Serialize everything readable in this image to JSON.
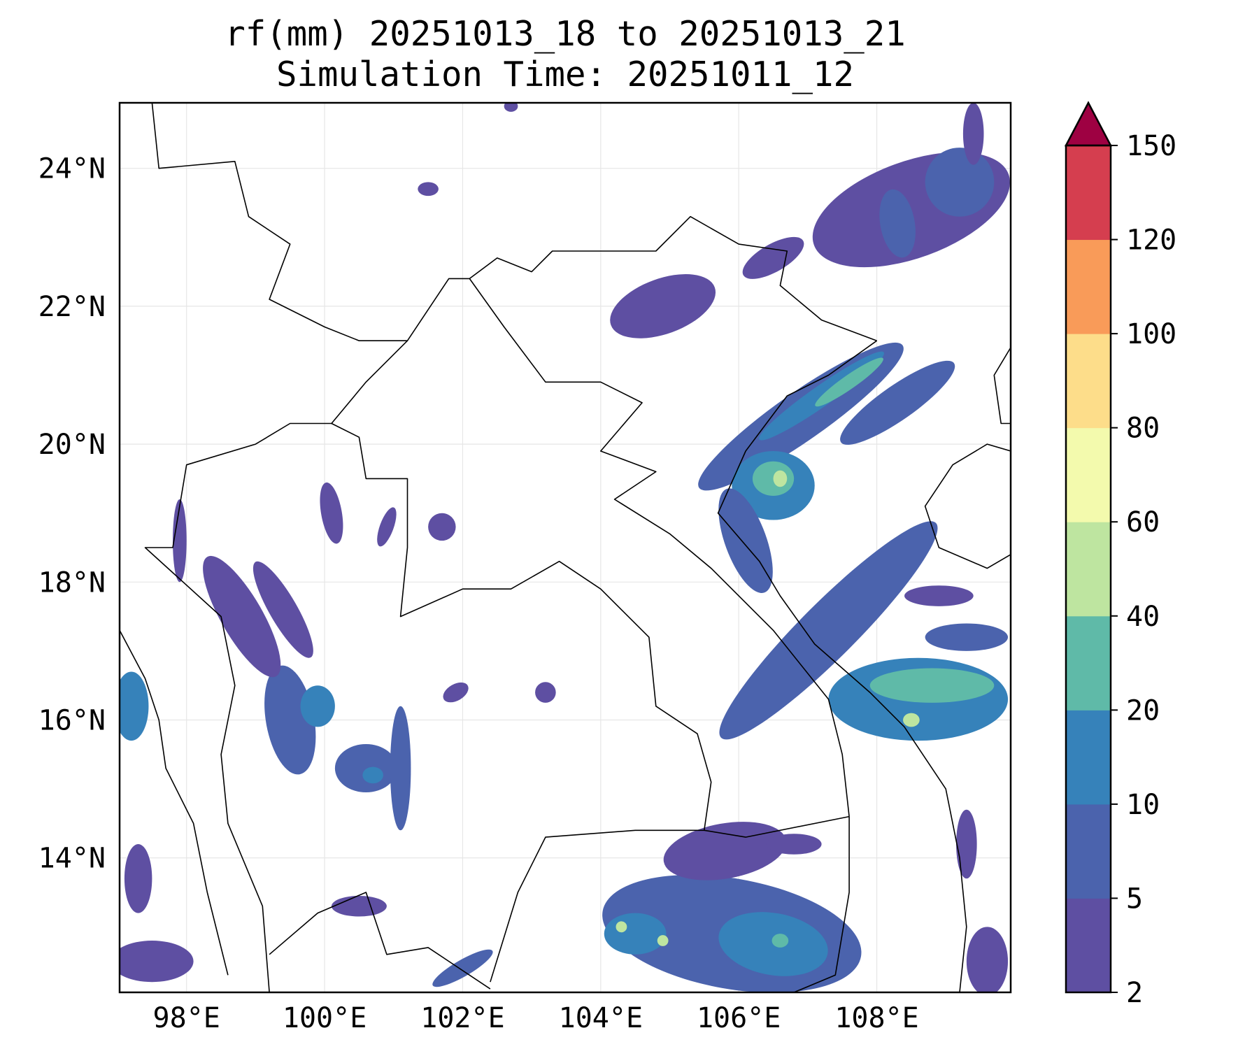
{
  "title": {
    "line1": "rf(mm) 20251013_18 to 20251013_21",
    "line2": "Simulation Time: 20251011_12"
  },
  "map": {
    "lon_range": [
      97.03,
      109.94
    ],
    "lat_range": [
      12.05,
      24.95
    ],
    "grid": true,
    "x_ticks": [
      {
        "value": 98,
        "label": "98°E"
      },
      {
        "value": 100,
        "label": "100°E"
      },
      {
        "value": 102,
        "label": "102°E"
      },
      {
        "value": 104,
        "label": "104°E"
      },
      {
        "value": 106,
        "label": "106°E"
      },
      {
        "value": 108,
        "label": "108°E"
      }
    ],
    "y_ticks": [
      {
        "value": 24,
        "label": "24°N"
      },
      {
        "value": 22,
        "label": "22°N"
      },
      {
        "value": 20,
        "label": "20°N"
      },
      {
        "value": 18,
        "label": "18°N"
      },
      {
        "value": 16,
        "label": "16°N"
      },
      {
        "value": 14,
        "label": "14°N"
      }
    ],
    "borders": [
      [
        [
          97.5,
          24.95
        ],
        [
          97.6,
          24.0
        ],
        [
          98.7,
          24.1
        ],
        [
          98.9,
          23.3
        ],
        [
          99.5,
          22.9
        ],
        [
          99.2,
          22.1
        ],
        [
          100.0,
          21.7
        ],
        [
          100.5,
          21.5
        ],
        [
          101.2,
          21.5
        ],
        [
          101.8,
          22.4
        ],
        [
          102.1,
          22.4
        ],
        [
          102.5,
          22.7
        ],
        [
          103.0,
          22.5
        ],
        [
          103.3,
          22.8
        ],
        [
          104.0,
          22.8
        ],
        [
          104.8,
          22.8
        ],
        [
          105.3,
          23.3
        ],
        [
          106.0,
          22.9
        ],
        [
          106.7,
          22.8
        ],
        [
          106.6,
          22.3
        ],
        [
          107.2,
          21.8
        ],
        [
          108.0,
          21.5
        ]
      ],
      [
        [
          108.0,
          21.5
        ],
        [
          107.3,
          21.0
        ],
        [
          106.7,
          20.7
        ],
        [
          106.1,
          19.9
        ],
        [
          105.7,
          19.0
        ],
        [
          106.3,
          18.3
        ],
        [
          106.6,
          17.8
        ],
        [
          107.1,
          17.1
        ],
        [
          107.9,
          16.4
        ],
        [
          108.4,
          15.9
        ],
        [
          109.0,
          15.0
        ],
        [
          109.2,
          14.0
        ],
        [
          109.3,
          13.0
        ],
        [
          109.2,
          12.05
        ]
      ],
      [
        [
          102.1,
          22.4
        ],
        [
          102.6,
          21.7
        ],
        [
          103.2,
          20.9
        ],
        [
          104.0,
          20.9
        ],
        [
          104.6,
          20.6
        ],
        [
          104.0,
          19.9
        ],
        [
          104.8,
          19.6
        ],
        [
          104.2,
          19.2
        ],
        [
          105.0,
          18.7
        ],
        [
          105.6,
          18.2
        ],
        [
          106.5,
          17.3
        ],
        [
          107.3,
          16.3
        ],
        [
          107.5,
          15.5
        ],
        [
          107.6,
          14.6
        ]
      ],
      [
        [
          107.6,
          14.6
        ],
        [
          107.6,
          13.5
        ],
        [
          107.4,
          12.3
        ],
        [
          106.8,
          12.05
        ]
      ],
      [
        [
          101.2,
          21.5
        ],
        [
          100.6,
          20.9
        ],
        [
          100.1,
          20.3
        ],
        [
          100.5,
          20.1
        ],
        [
          100.6,
          19.5
        ],
        [
          101.2,
          19.5
        ],
        [
          101.2,
          18.5
        ],
        [
          101.1,
          17.5
        ],
        [
          102.0,
          17.9
        ],
        [
          102.7,
          17.9
        ],
        [
          103.4,
          18.3
        ],
        [
          104.0,
          17.9
        ],
        [
          104.7,
          17.2
        ],
        [
          104.8,
          16.2
        ],
        [
          105.4,
          15.8
        ],
        [
          105.6,
          15.1
        ],
        [
          105.5,
          14.4
        ]
      ],
      [
        [
          100.1,
          20.3
        ],
        [
          99.5,
          20.3
        ],
        [
          99.0,
          20.0
        ],
        [
          98.0,
          19.7
        ],
        [
          97.8,
          18.5
        ],
        [
          97.4,
          18.5
        ],
        [
          98.5,
          17.5
        ],
        [
          98.7,
          16.5
        ],
        [
          98.5,
          15.5
        ],
        [
          98.6,
          14.5
        ],
        [
          99.1,
          13.3
        ],
        [
          99.2,
          12.05
        ]
      ],
      [
        [
          102.4,
          12.2
        ],
        [
          102.8,
          13.5
        ],
        [
          103.2,
          14.3
        ],
        [
          104.5,
          14.4
        ],
        [
          105.5,
          14.4
        ],
        [
          106.1,
          14.3
        ],
        [
          107.6,
          14.6
        ]
      ],
      [
        [
          99.2,
          12.6
        ],
        [
          99.9,
          13.2
        ],
        [
          100.6,
          13.5
        ],
        [
          100.9,
          12.6
        ],
        [
          101.5,
          12.7
        ],
        [
          102.4,
          12.1
        ]
      ],
      [
        [
          97.03,
          17.3
        ],
        [
          97.4,
          16.6
        ],
        [
          97.6,
          16.0
        ],
        [
          97.7,
          15.3
        ],
        [
          98.1,
          14.5
        ],
        [
          98.3,
          13.5
        ],
        [
          98.6,
          12.3
        ]
      ],
      [
        [
          109.94,
          19.9
        ],
        [
          109.6,
          20.0
        ],
        [
          109.1,
          19.7
        ],
        [
          108.7,
          19.1
        ],
        [
          108.9,
          18.5
        ],
        [
          109.6,
          18.2
        ],
        [
          109.94,
          18.4
        ]
      ],
      [
        [
          109.94,
          21.4
        ],
        [
          109.7,
          21.0
        ],
        [
          109.8,
          20.3
        ],
        [
          109.94,
          20.3
        ]
      ]
    ]
  },
  "rain_cells": [
    {
      "lon": 108.5,
      "lat": 23.4,
      "rlon": 1.5,
      "rlat": 0.7,
      "rot": -20,
      "level": 0
    },
    {
      "lon": 108.3,
      "lat": 23.2,
      "rlon": 0.25,
      "rlat": 0.5,
      "rot": -10,
      "level": 1
    },
    {
      "lon": 109.2,
      "lat": 23.8,
      "rlon": 0.5,
      "rlat": 0.5,
      "rot": 0,
      "level": 1
    },
    {
      "lon": 104.9,
      "lat": 22.0,
      "rlon": 0.8,
      "rlat": 0.4,
      "rot": -20,
      "level": 0
    },
    {
      "lon": 106.5,
      "lat": 22.7,
      "rlon": 0.5,
      "rlat": 0.2,
      "rot": -30,
      "level": 0
    },
    {
      "lon": 106.9,
      "lat": 20.4,
      "rlon": 1.8,
      "rlat": 0.35,
      "rot": -35,
      "level": 1
    },
    {
      "lon": 107.2,
      "lat": 20.7,
      "rlon": 1.1,
      "rlat": 0.15,
      "rot": -35,
      "level": 2
    },
    {
      "lon": 107.6,
      "lat": 20.9,
      "rlon": 0.6,
      "rlat": 0.1,
      "rot": -35,
      "level": 3
    },
    {
      "lon": 108.3,
      "lat": 20.6,
      "rlon": 1.0,
      "rlat": 0.25,
      "rot": -35,
      "level": 1
    },
    {
      "lon": 106.5,
      "lat": 19.4,
      "rlon": 0.6,
      "rlat": 0.5,
      "rot": 0,
      "level": 2
    },
    {
      "lon": 106.5,
      "lat": 19.5,
      "rlon": 0.3,
      "rlat": 0.25,
      "rot": 0,
      "level": 3
    },
    {
      "lon": 106.6,
      "lat": 19.5,
      "rlon": 0.1,
      "rlat": 0.12,
      "rot": 0,
      "level": 4
    },
    {
      "lon": 106.1,
      "lat": 18.6,
      "rlon": 0.3,
      "rlat": 0.8,
      "rot": -20,
      "level": 1
    },
    {
      "lon": 107.3,
      "lat": 17.3,
      "rlon": 2.2,
      "rlat": 0.4,
      "rot": -45,
      "level": 1
    },
    {
      "lon": 108.6,
      "lat": 16.3,
      "rlon": 1.3,
      "rlat": 0.6,
      "rot": 0,
      "level": 2
    },
    {
      "lon": 108.8,
      "lat": 16.5,
      "rlon": 0.9,
      "rlat": 0.25,
      "rot": 0,
      "level": 3
    },
    {
      "lon": 108.5,
      "lat": 16.0,
      "rlon": 0.12,
      "rlat": 0.1,
      "rot": 0,
      "level": 4
    },
    {
      "lon": 109.3,
      "lat": 17.2,
      "rlon": 0.6,
      "rlat": 0.2,
      "rot": 0,
      "level": 1
    },
    {
      "lon": 108.9,
      "lat": 17.8,
      "rlon": 0.5,
      "rlat": 0.15,
      "rot": 0,
      "level": 0
    },
    {
      "lon": 105.9,
      "lat": 12.9,
      "rlon": 1.9,
      "rlat": 0.8,
      "rot": 10,
      "level": 1
    },
    {
      "lon": 106.5,
      "lat": 12.75,
      "rlon": 0.8,
      "rlat": 0.45,
      "rot": 10,
      "level": 2
    },
    {
      "lon": 106.6,
      "lat": 12.8,
      "rlon": 0.12,
      "rlat": 0.1,
      "rot": 0,
      "level": 3
    },
    {
      "lon": 104.5,
      "lat": 12.9,
      "rlon": 0.45,
      "rlat": 0.3,
      "rot": 0,
      "level": 2
    },
    {
      "lon": 104.3,
      "lat": 13.0,
      "rlon": 0.08,
      "rlat": 0.08,
      "rot": 0,
      "level": 4
    },
    {
      "lon": 104.9,
      "lat": 12.8,
      "rlon": 0.08,
      "rlat": 0.08,
      "rot": 0,
      "level": 4
    },
    {
      "lon": 105.8,
      "lat": 14.1,
      "rlon": 0.9,
      "rlat": 0.4,
      "rot": -10,
      "level": 0
    },
    {
      "lon": 106.8,
      "lat": 14.2,
      "rlon": 0.4,
      "rlat": 0.15,
      "rot": 0,
      "level": 0
    },
    {
      "lon": 100.6,
      "lat": 15.3,
      "rlon": 0.45,
      "rlat": 0.35,
      "rot": 0,
      "level": 1
    },
    {
      "lon": 100.7,
      "lat": 15.2,
      "rlon": 0.15,
      "rlat": 0.12,
      "rot": 0,
      "level": 2
    },
    {
      "lon": 101.1,
      "lat": 15.3,
      "rlon": 0.15,
      "rlat": 0.9,
      "rot": 0,
      "level": 1
    },
    {
      "lon": 99.5,
      "lat": 16.0,
      "rlon": 0.35,
      "rlat": 0.8,
      "rot": -10,
      "level": 1
    },
    {
      "lon": 99.9,
      "lat": 16.2,
      "rlon": 0.25,
      "rlat": 0.3,
      "rot": 0,
      "level": 2
    },
    {
      "lon": 98.8,
      "lat": 17.5,
      "rlon": 0.3,
      "rlat": 1.0,
      "rot": -30,
      "level": 0
    },
    {
      "lon": 99.4,
      "lat": 17.6,
      "rlon": 0.2,
      "rlat": 0.8,
      "rot": -30,
      "level": 0
    },
    {
      "lon": 97.9,
      "lat": 18.6,
      "rlon": 0.1,
      "rlat": 0.6,
      "rot": 0,
      "level": 0
    },
    {
      "lon": 97.2,
      "lat": 16.2,
      "rlon": 0.25,
      "rlat": 0.5,
      "rot": 0,
      "level": 2
    },
    {
      "lon": 97.5,
      "lat": 12.5,
      "rlon": 0.6,
      "rlat": 0.3,
      "rot": 0,
      "level": 0
    },
    {
      "lon": 97.3,
      "lat": 13.7,
      "rlon": 0.2,
      "rlat": 0.5,
      "rot": 0,
      "level": 0
    },
    {
      "lon": 100.5,
      "lat": 13.3,
      "rlon": 0.4,
      "rlat": 0.15,
      "rot": 0,
      "level": 0
    },
    {
      "lon": 102.0,
      "lat": 12.4,
      "rlon": 0.5,
      "rlat": 0.12,
      "rot": -30,
      "level": 1
    },
    {
      "lon": 101.7,
      "lat": 18.8,
      "rlon": 0.2,
      "rlat": 0.2,
      "rot": 0,
      "level": 0
    },
    {
      "lon": 100.9,
      "lat": 18.8,
      "rlon": 0.1,
      "rlat": 0.3,
      "rot": 20,
      "level": 0
    },
    {
      "lon": 100.1,
      "lat": 19.0,
      "rlon": 0.15,
      "rlat": 0.45,
      "rot": -10,
      "level": 0
    },
    {
      "lon": 101.9,
      "lat": 16.4,
      "rlon": 0.2,
      "rlat": 0.12,
      "rot": -30,
      "level": 0
    },
    {
      "lon": 103.2,
      "lat": 16.4,
      "rlon": 0.15,
      "rlat": 0.15,
      "rot": 0,
      "level": 0
    },
    {
      "lon": 109.6,
      "lat": 12.5,
      "rlon": 0.3,
      "rlat": 0.5,
      "rot": 0,
      "level": 0
    },
    {
      "lon": 109.3,
      "lat": 14.2,
      "rlon": 0.15,
      "rlat": 0.5,
      "rot": 0,
      "level": 0
    },
    {
      "lon": 101.5,
      "lat": 23.7,
      "rlon": 0.15,
      "rlat": 0.1,
      "rot": 0,
      "level": 0
    },
    {
      "lon": 102.7,
      "lat": 24.9,
      "rlon": 0.1,
      "rlat": 0.08,
      "rot": 0,
      "level": 0
    },
    {
      "lon": 109.4,
      "lat": 24.5,
      "rlon": 0.15,
      "rlat": 0.45,
      "rot": 0,
      "level": 0
    }
  ],
  "colorbar": {
    "levels": [
      "2",
      "5",
      "10",
      "20",
      "40",
      "60",
      "80",
      "100",
      "120",
      "150"
    ],
    "colors": [
      "#5e4fa2",
      "#4b63ad",
      "#3682ba",
      "#5fbaa8",
      "#bee5a0",
      "#f3faad",
      "#fddd8a",
      "#f99b59",
      "#d53e4f"
    ],
    "extend_color": "#9e0142"
  }
}
